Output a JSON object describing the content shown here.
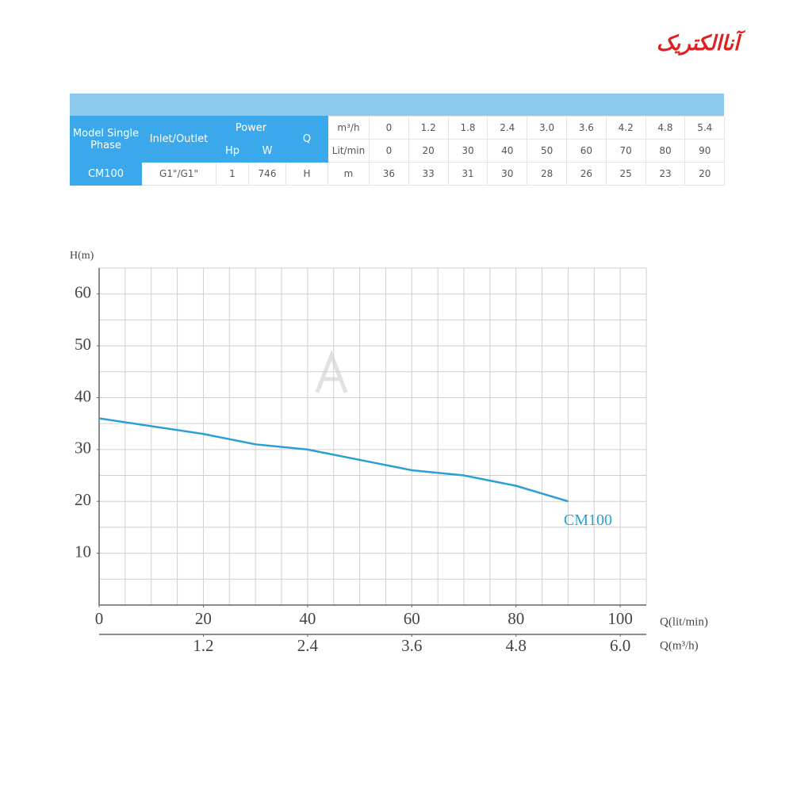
{
  "logo": "آناالکتریک",
  "table": {
    "model_header": "Model Single Phase",
    "inlet_header": "Inlet/Outlet",
    "power_header": "Power",
    "hp_header": "Hp",
    "w_header": "W",
    "q_header": "Q",
    "flow_rows": [
      {
        "unit": "m³/h",
        "values": [
          "0",
          "1.2",
          "1.8",
          "2.4",
          "3.0",
          "3.6",
          "4.2",
          "4.8",
          "5.4"
        ]
      },
      {
        "unit": "Lit/min",
        "values": [
          "0",
          "20",
          "30",
          "40",
          "50",
          "60",
          "70",
          "80",
          "90"
        ]
      }
    ],
    "row": {
      "model": "CM100",
      "inlet": "G1\"/G1\"",
      "hp": "1",
      "w": "746",
      "q": "H",
      "unit": "m",
      "values": [
        "36",
        "33",
        "31",
        "30",
        "28",
        "26",
        "25",
        "23",
        "20"
      ]
    }
  },
  "chart_data": {
    "type": "line",
    "y_label": "H(m)",
    "x_label": "Q(lit/min)",
    "x2_label": "Q(m³/h)",
    "x": [
      0,
      20,
      30,
      40,
      50,
      60,
      70,
      80,
      90
    ],
    "series": [
      {
        "name": "CM100",
        "color": "#2a9fd6",
        "values": [
          36,
          33,
          31,
          30,
          28,
          26,
          25,
          23,
          20
        ]
      }
    ],
    "xlim": [
      0,
      105
    ],
    "xticks": [
      0,
      20,
      40,
      60,
      80,
      100
    ],
    "x2lim": [
      0,
      6.3
    ],
    "x2ticks": [
      1.2,
      2.4,
      3.6,
      4.8,
      {
        "value": 6,
        "label": "6.0"
      }
    ],
    "ylim": [
      0,
      65
    ],
    "yticks": [
      10,
      20,
      30,
      40,
      50,
      60
    ],
    "grid": true,
    "minor_grid_step": 5
  }
}
